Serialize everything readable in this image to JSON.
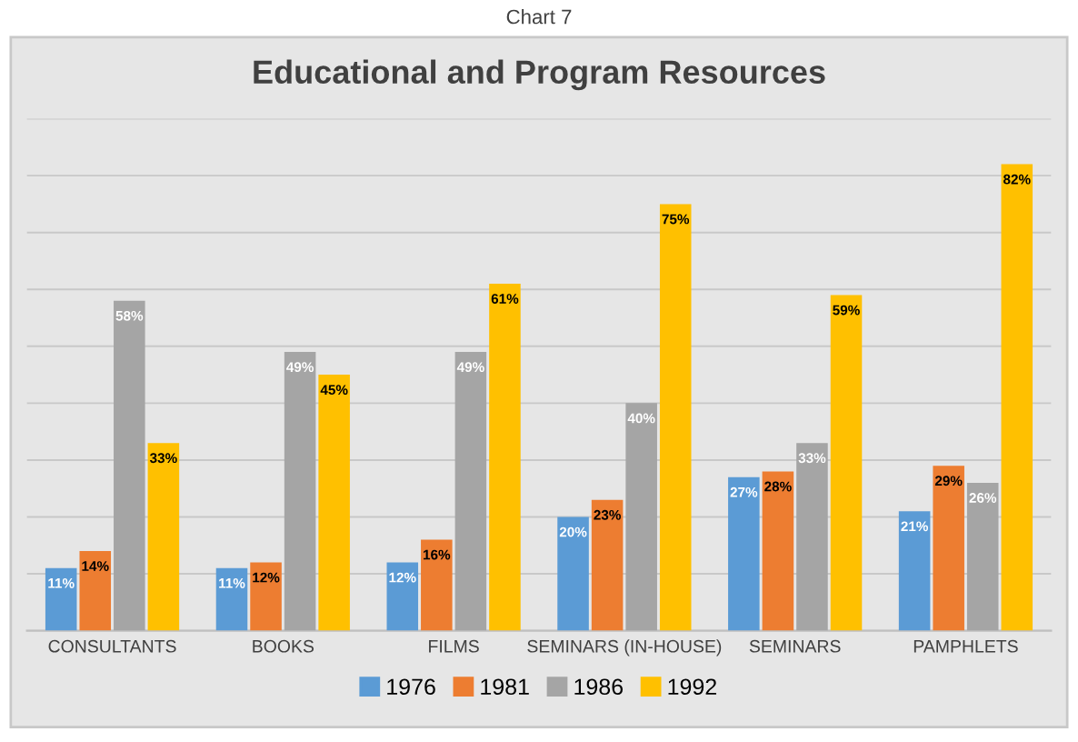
{
  "chart_data": {
    "type": "bar",
    "title": "Educational and Program Resources",
    "annotations": [
      "Chart 7"
    ],
    "categories": [
      "CONSULTANTS",
      "BOOKS",
      "FILMS",
      "SEMINARS (IN-HOUSE)",
      "SEMINARS",
      "PAMPHLETS"
    ],
    "series": [
      {
        "name": "1976",
        "color": "#5b9bd5",
        "values": [
          11,
          11,
          12,
          20,
          27,
          21
        ],
        "value_labels": [
          "11%",
          "11%",
          "12%",
          "20%",
          "27%",
          "21%"
        ]
      },
      {
        "name": "1981",
        "color": "#ed7d31",
        "values": [
          14,
          12,
          16,
          23,
          28,
          29
        ],
        "value_labels": [
          "14%",
          "12%",
          "16%",
          "23%",
          "28%",
          "29%"
        ]
      },
      {
        "name": "1986",
        "color": "#a5a5a5",
        "values": [
          58,
          49,
          49,
          40,
          33,
          26
        ],
        "value_labels": [
          "58%",
          "49%",
          "49%",
          "40%",
          "33%",
          "26%"
        ]
      },
      {
        "name": "1992",
        "color": "#ffc000",
        "values": [
          33,
          45,
          61,
          75,
          59,
          82
        ],
        "value_labels": [
          "33%",
          "45%",
          "61%",
          "75%",
          "59%",
          "82%"
        ]
      }
    ],
    "ylim": [
      0,
      90
    ],
    "yticks": [
      {
        "value": 0,
        "label": null
      },
      {
        "value": 10,
        "label": null
      },
      {
        "value": 20,
        "label": null
      },
      {
        "value": 30,
        "label": null
      },
      {
        "value": 40,
        "label": null
      },
      {
        "value": 50,
        "label": null
      },
      {
        "value": 60,
        "label": null
      },
      {
        "value": 70,
        "label": null
      },
      {
        "value": 80,
        "label": null
      },
      {
        "value": 90,
        "label": null
      }
    ],
    "grid": "y",
    "legend": "bottom"
  }
}
